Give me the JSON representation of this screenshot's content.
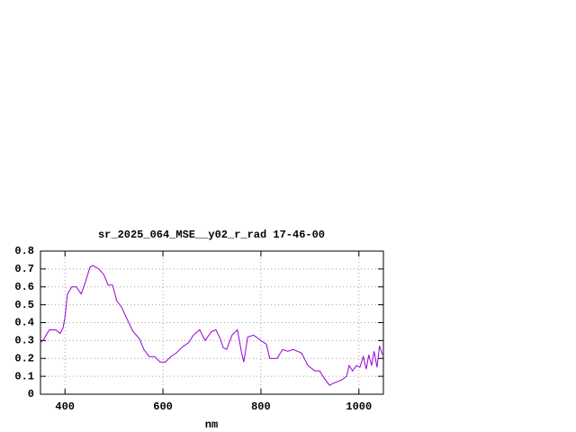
{
  "chart_data": {
    "type": "line",
    "title": "sr_2025_064_MSE__y02_r_rad 17-46-00",
    "x_label": "nm",
    "x": [
      350,
      355,
      368,
      381,
      390,
      396,
      400,
      405,
      414,
      423,
      433,
      442,
      451,
      457,
      469,
      479,
      488,
      497,
      506,
      515,
      525,
      539,
      552,
      561,
      572,
      583,
      594,
      605,
      616,
      627,
      638,
      653,
      662,
      675,
      686,
      699,
      708,
      717,
      723,
      730,
      741,
      752,
      760,
      765,
      773,
      785,
      800,
      811,
      818,
      833,
      844,
      855,
      866,
      883,
      896,
      910,
      920,
      929,
      940,
      947,
      956,
      965,
      975,
      980,
      987,
      995,
      1002,
      1009,
      1015,
      1020,
      1026,
      1031,
      1037,
      1042,
      1048
    ],
    "series": [
      {
        "color": "#9400d3",
        "values": [
          0.29,
          0.3,
          0.36,
          0.36,
          0.34,
          0.37,
          0.43,
          0.56,
          0.6,
          0.6,
          0.56,
          0.63,
          0.71,
          0.72,
          0.7,
          0.67,
          0.61,
          0.61,
          0.52,
          0.49,
          0.43,
          0.35,
          0.31,
          0.25,
          0.21,
          0.21,
          0.18,
          0.18,
          0.21,
          0.23,
          0.26,
          0.29,
          0.33,
          0.36,
          0.3,
          0.35,
          0.36,
          0.31,
          0.26,
          0.25,
          0.33,
          0.36,
          0.24,
          0.18,
          0.32,
          0.33,
          0.3,
          0.28,
          0.2,
          0.2,
          0.25,
          0.24,
          0.25,
          0.23,
          0.16,
          0.13,
          0.13,
          0.09,
          0.05,
          0.06,
          0.07,
          0.08,
          0.1,
          0.16,
          0.13,
          0.16,
          0.15,
          0.21,
          0.14,
          0.22,
          0.16,
          0.24,
          0.15,
          0.27,
          0.22
        ]
      }
    ],
    "xlim": [
      350,
      1050
    ],
    "ylim": [
      0,
      0.8
    ],
    "xticks": [
      400,
      600,
      800,
      1000
    ],
    "yticks": [
      0,
      0.1,
      0.2,
      0.3,
      0.4,
      0.5,
      0.6,
      0.7,
      0.8
    ],
    "grid": true
  }
}
